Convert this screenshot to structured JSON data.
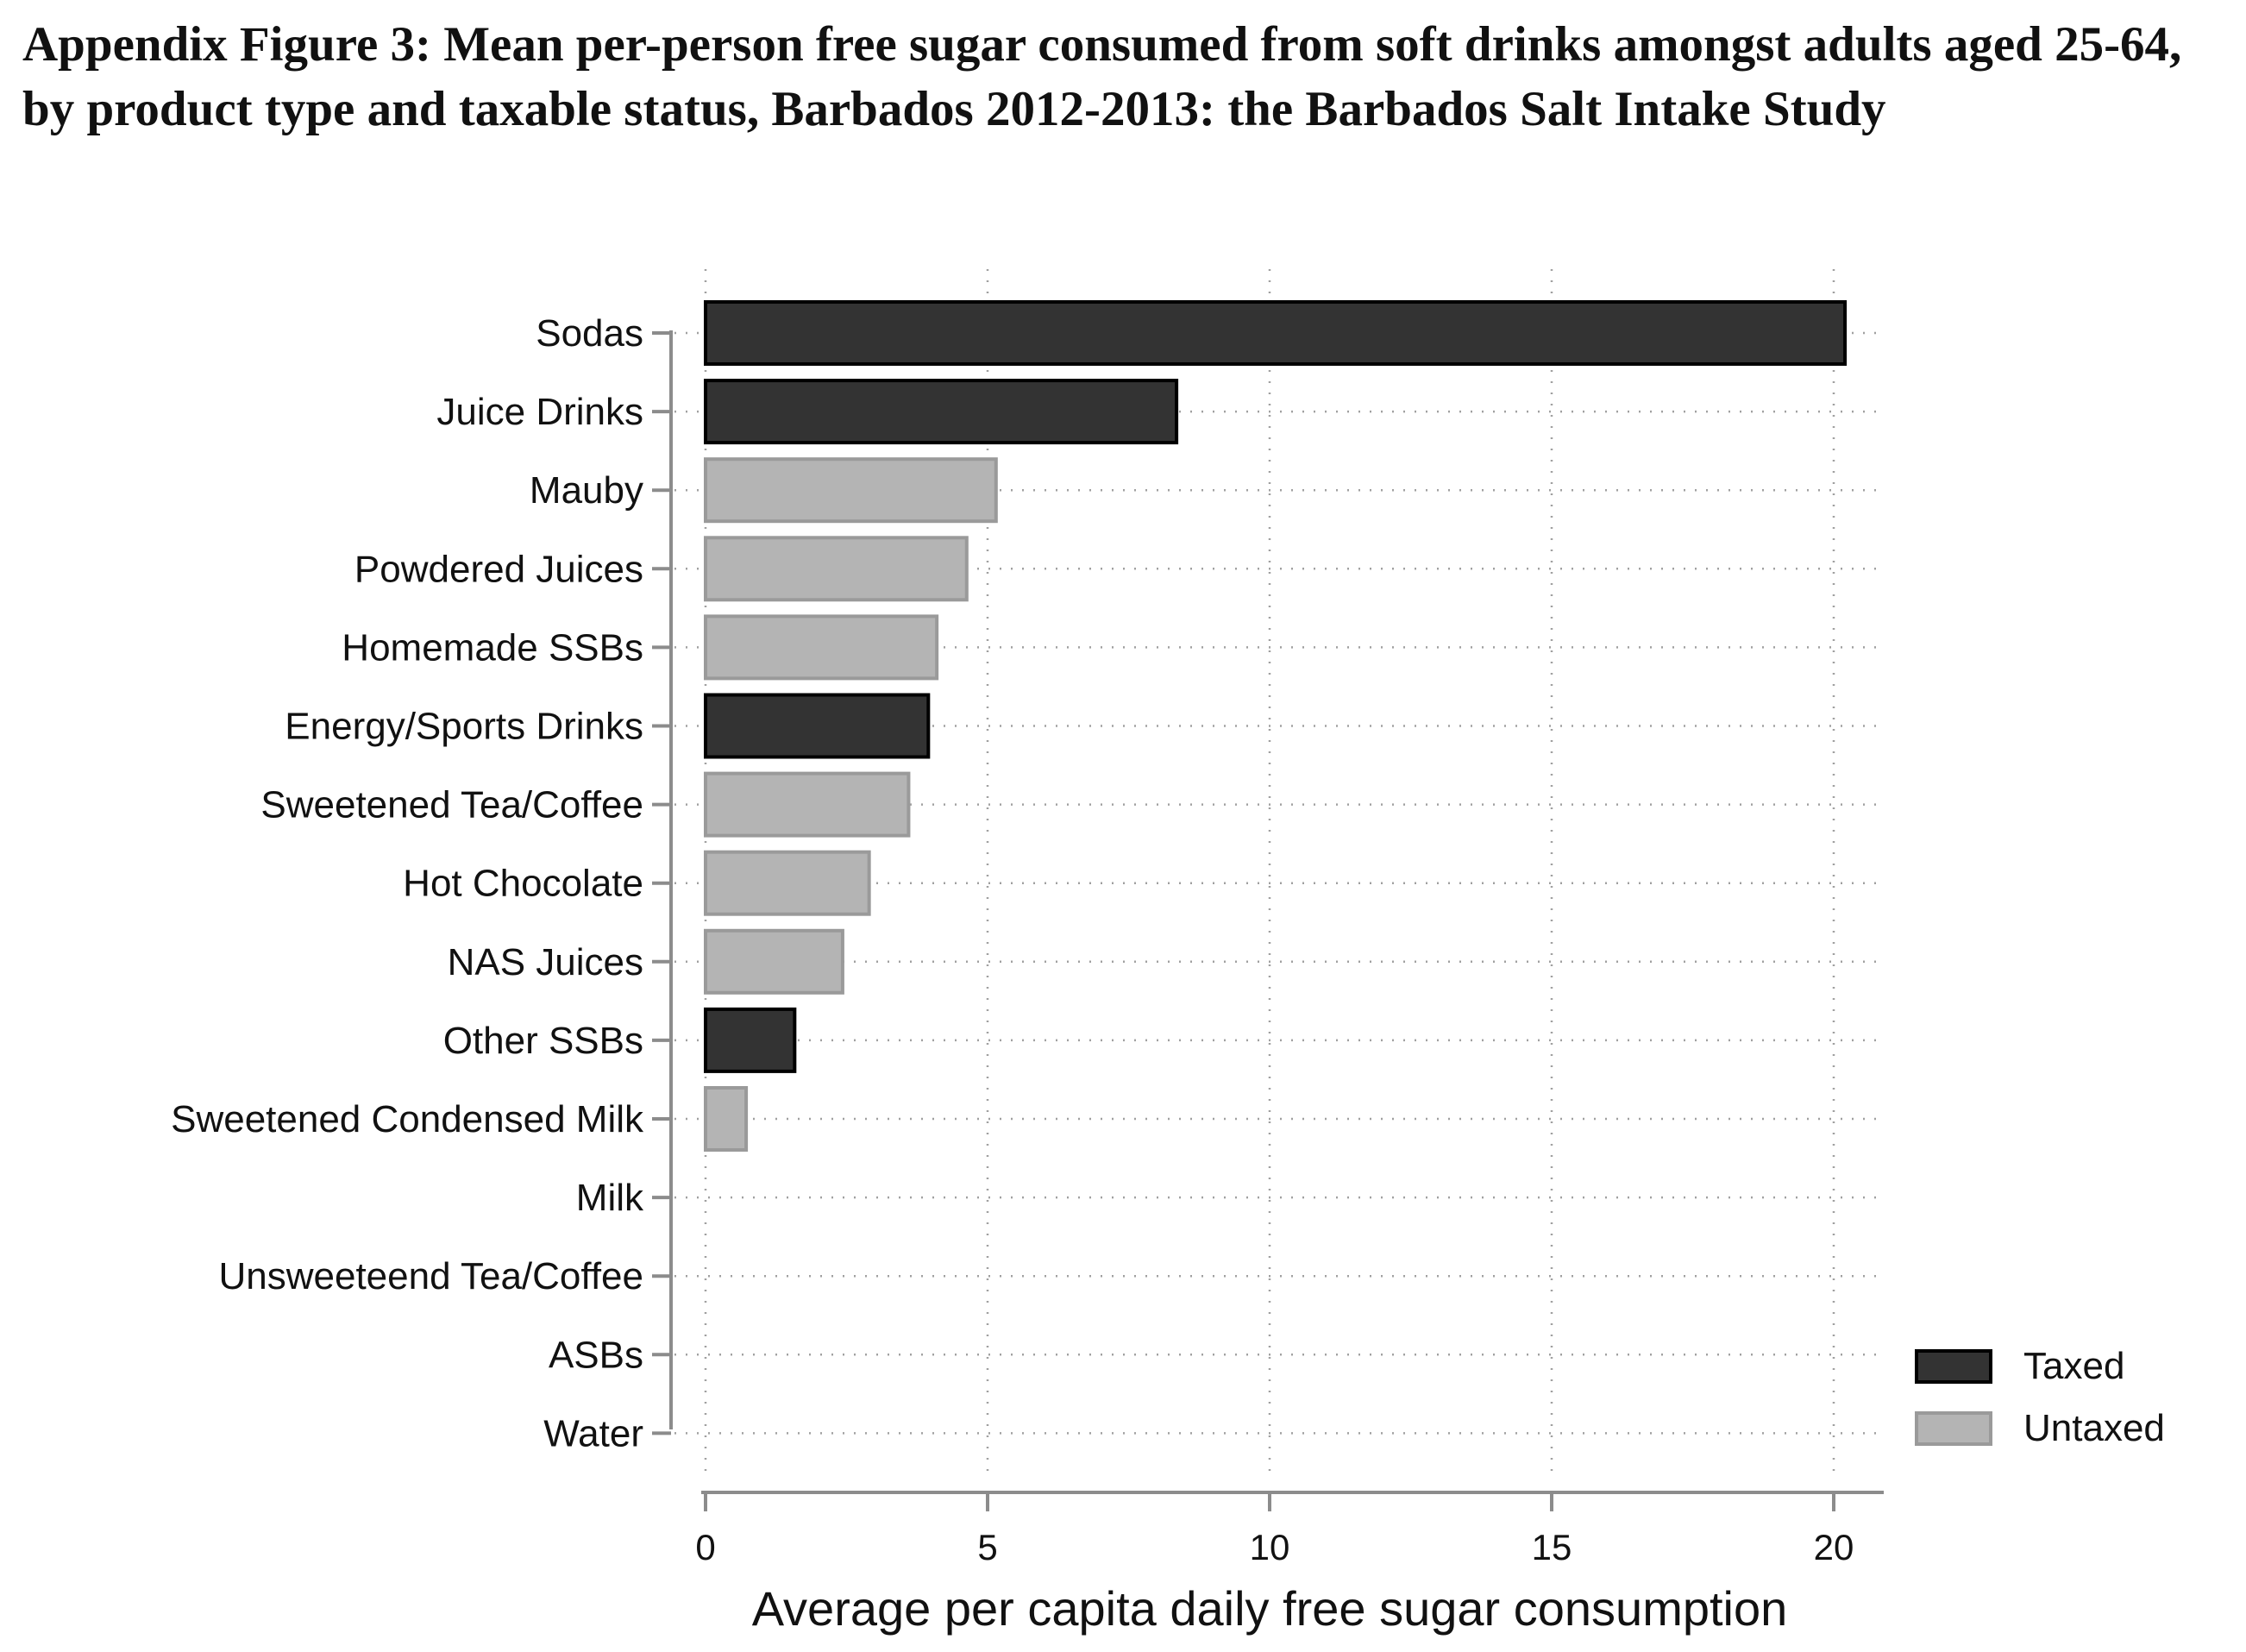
{
  "figure": {
    "title": "Appendix Figure 3: Mean per-person free sugar consumed from soft drinks amongst adults aged 25-64, by product type and taxable status, Barbados 2012-2013: the Barbados Salt Intake Study"
  },
  "colors": {
    "taxed": "#333333",
    "untaxed": "#b4b4b4",
    "untaxed_edge": "#9a9a9a",
    "axis": "#8c8c8c",
    "grid": "#a0a0a0"
  },
  "chart_data": {
    "type": "bar",
    "orientation": "horizontal",
    "title": "Appendix Figure 3: Mean per-person free sugar consumed from soft drinks amongst adults aged 25-64, by product type and taxable status, Barbados 2012-2013: the Barbados Salt Intake Study",
    "xlabel": "Average per capita daily free sugar consumption",
    "ylabel": "",
    "xlim": [
      0,
      20
    ],
    "xticks": [
      0,
      5,
      10,
      15,
      20
    ],
    "grid": true,
    "legend_position": "bottom-right",
    "legend": [
      {
        "label": "Taxed",
        "status": "taxed"
      },
      {
        "label": "Untaxed",
        "status": "untaxed"
      }
    ],
    "categories": [
      "Sodas",
      "Juice Drinks",
      "Mauby",
      "Powdered Juices",
      "Homemade SSBs",
      "Energy/Sports Drinks",
      "Sweetened Tea/Coffee",
      "Hot Chocolate",
      "NAS Juices",
      "Other SSBs",
      "Sweetened Condensed Milk",
      "Milk",
      "Unsweeteend Tea/Coffee",
      "ASBs",
      "Water"
    ],
    "values": [
      20.2,
      8.35,
      5.15,
      4.63,
      4.1,
      3.95,
      3.6,
      2.9,
      2.43,
      1.58,
      0.72,
      0,
      0,
      0,
      0
    ],
    "status": [
      "taxed",
      "taxed",
      "untaxed",
      "untaxed",
      "untaxed",
      "taxed",
      "untaxed",
      "untaxed",
      "untaxed",
      "taxed",
      "untaxed",
      "untaxed",
      "untaxed",
      "untaxed",
      "untaxed"
    ]
  }
}
